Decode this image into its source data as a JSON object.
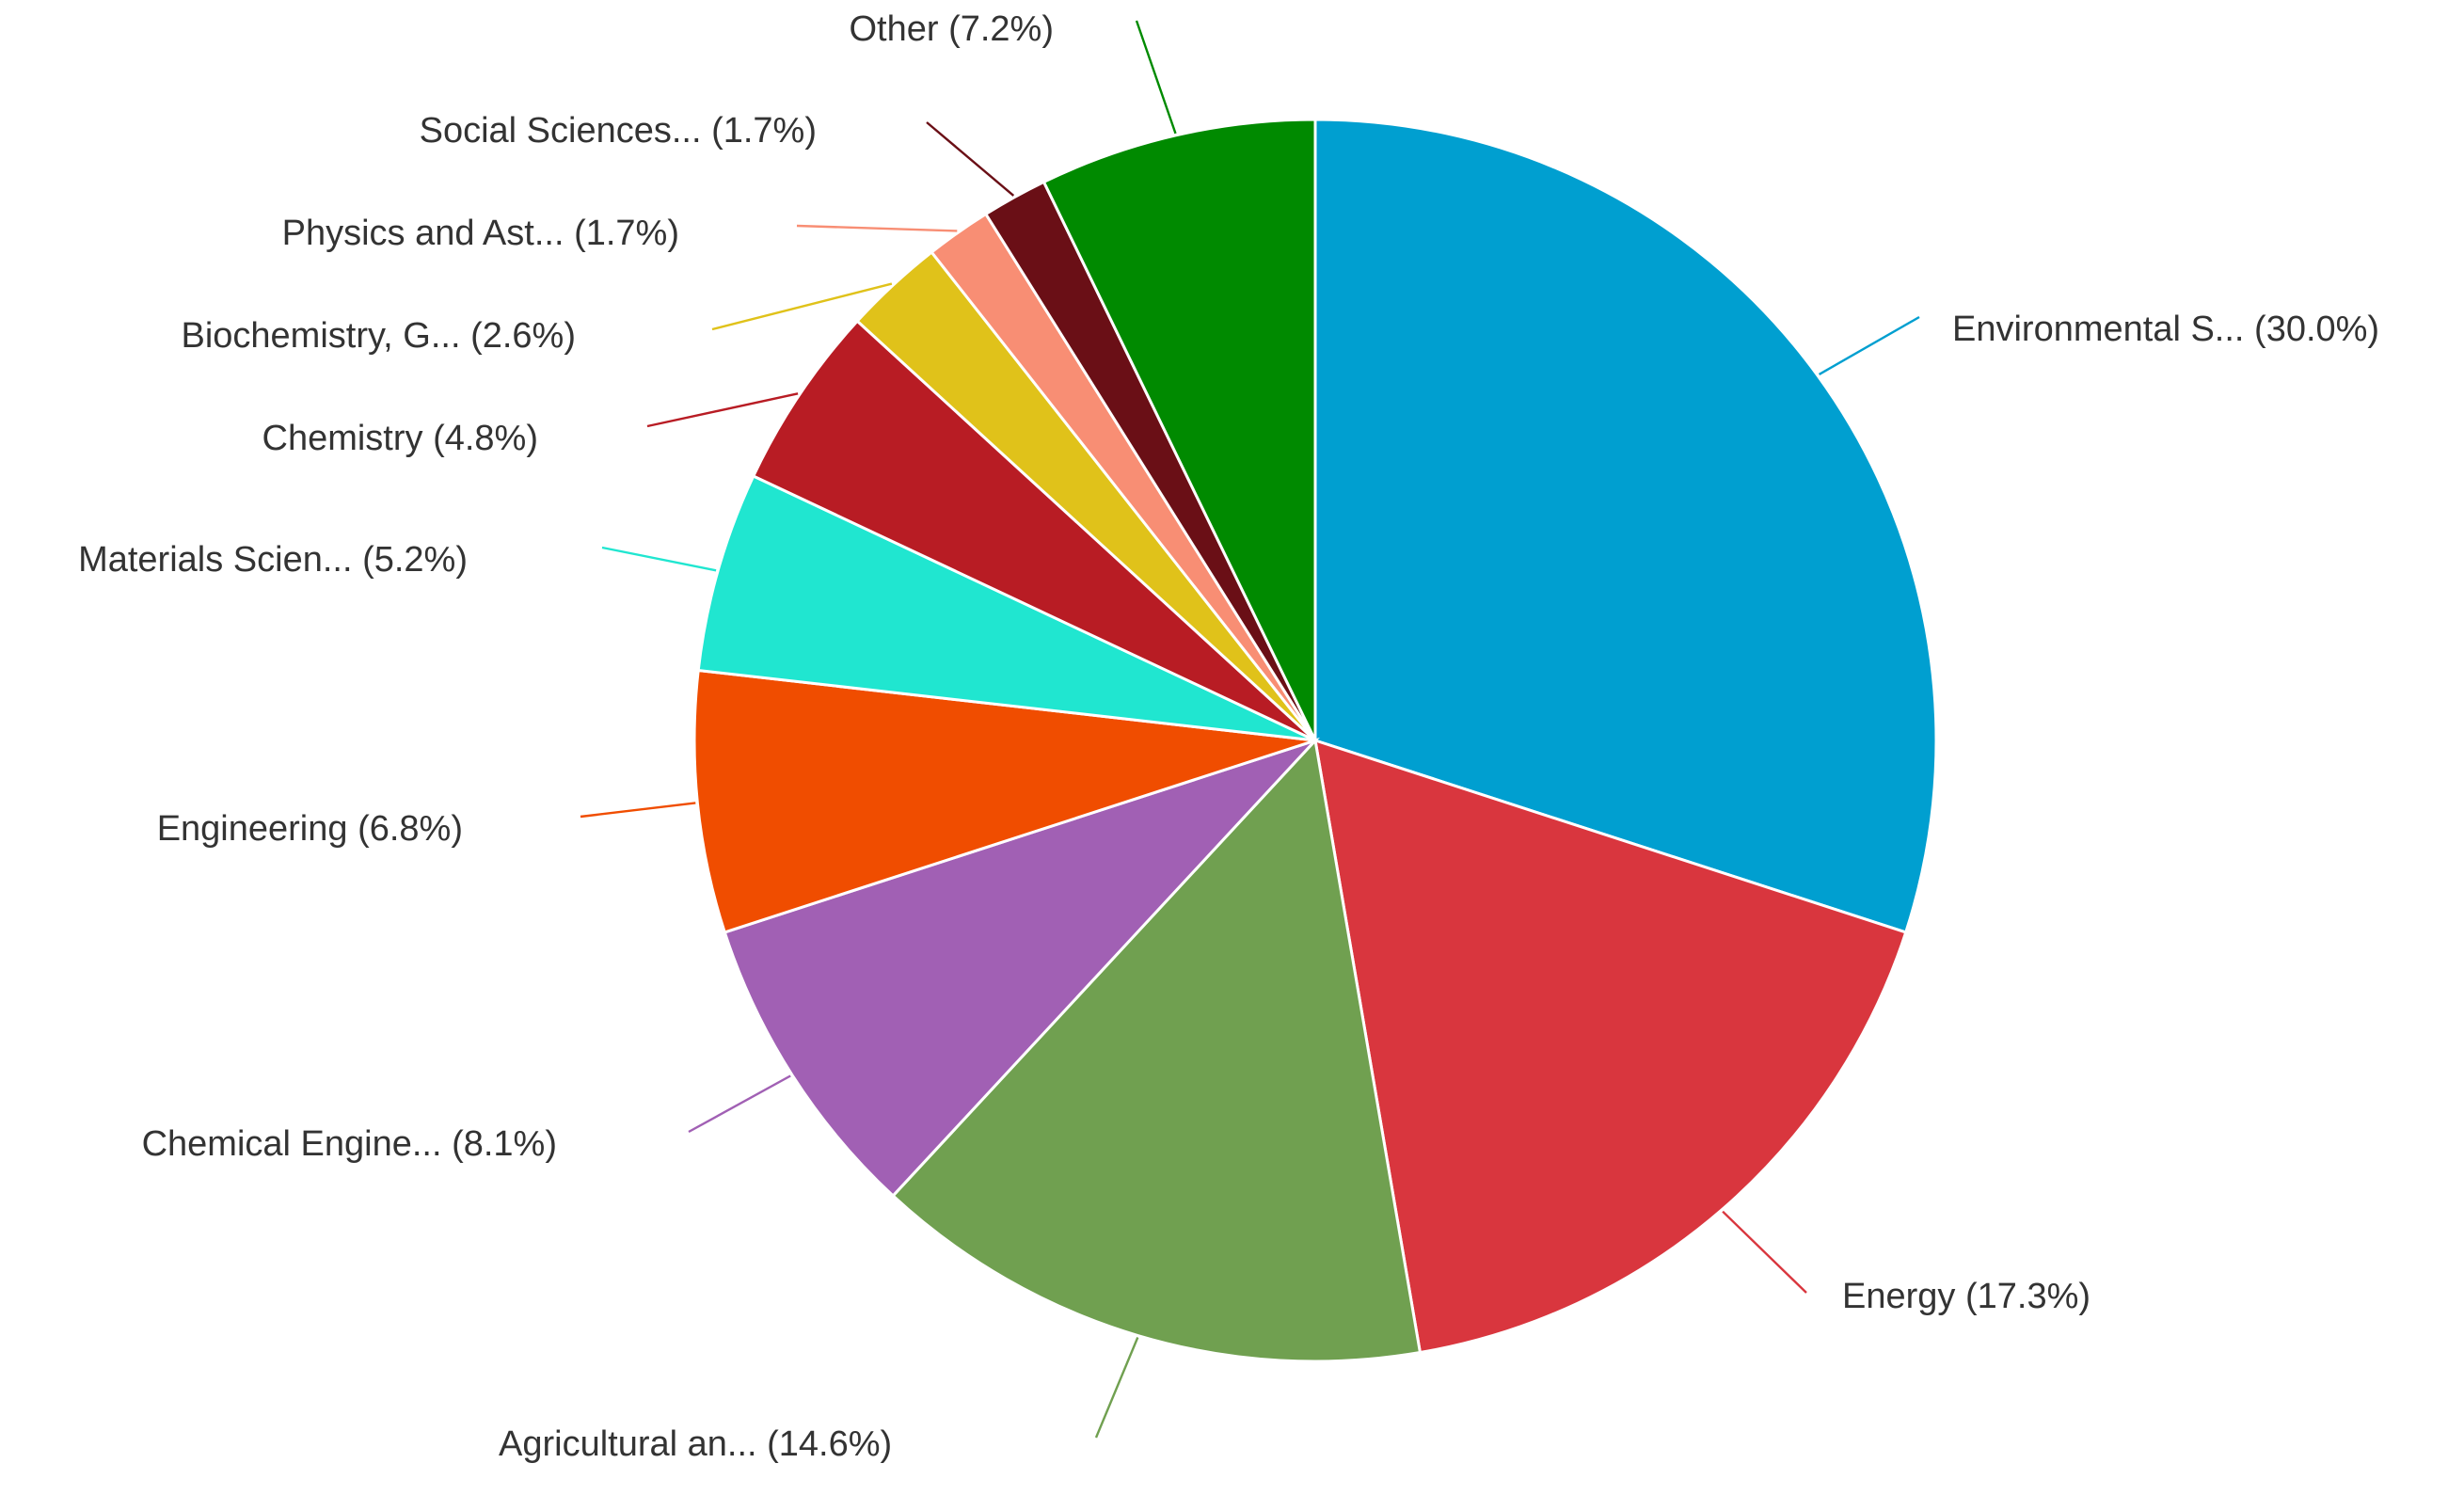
{
  "chart_data": {
    "type": "pie",
    "start_angle_deg": 0,
    "direction": "clockwise",
    "slices": [
      {
        "label": "Environmental S... (30.0%)",
        "value": 30.0,
        "color": "#009fd0"
      },
      {
        "label": "Energy (17.3%)",
        "value": 17.3,
        "color": "#d9363e"
      },
      {
        "label": "Agricultural an... (14.6%)",
        "value": 14.6,
        "color": "#70a050"
      },
      {
        "label": "Chemical Engine... (8.1%)",
        "value": 8.1,
        "color": "#a160b4"
      },
      {
        "label": "Engineering (6.8%)",
        "value": 6.8,
        "color": "#f04d00"
      },
      {
        "label": "Materials Scien... (5.2%)",
        "value": 5.2,
        "color": "#20e6d0"
      },
      {
        "label": "Chemistry (4.8%)",
        "value": 4.8,
        "color": "#b81c24"
      },
      {
        "label": "Biochemistry, G... (2.6%)",
        "value": 2.6,
        "color": "#e0c21a"
      },
      {
        "label": "Physics and Ast... (1.7%)",
        "value": 1.7,
        "color": "#f88e74"
      },
      {
        "label": "Social Sciences... (1.7%)",
        "value": 1.7,
        "color": "#6a0f16"
      },
      {
        "label": "Other (7.2%)",
        "value": 7.2,
        "color": "#008a00"
      }
    ]
  }
}
